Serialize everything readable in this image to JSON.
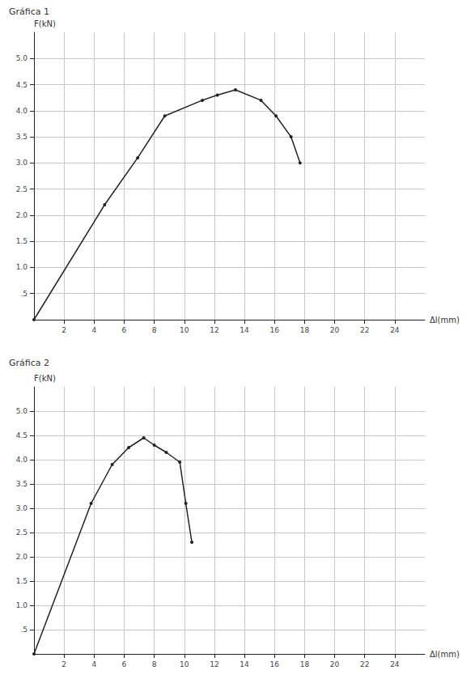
{
  "chart_data": [
    {
      "type": "line",
      "title": "Gráfica 1",
      "y_label": "F(kN)",
      "x_label": "Δl(mm)",
      "x": [
        0,
        4.7,
        6.9,
        8.7,
        11.2,
        12.2,
        13.4,
        15.1,
        16.1,
        17.1,
        17.7
      ],
      "values": [
        0,
        2.2,
        3.1,
        3.9,
        4.2,
        4.3,
        4.4,
        4.2,
        3.9,
        3.5,
        3.0
      ],
      "color": "#222222",
      "marker": "circle",
      "line_style": "solid",
      "grid": true,
      "xlim": [
        0,
        26
      ],
      "xticks": [
        2,
        4,
        6,
        8,
        10,
        12,
        14,
        16,
        18,
        20,
        22,
        24
      ],
      "ylim": [
        0,
        5.5
      ],
      "yticks": [
        {
          "value": 0.5,
          "label": ".5"
        },
        {
          "value": 1,
          "label": "1.0"
        },
        {
          "value": 1.5,
          "label": "1.5"
        },
        {
          "value": 2,
          "label": "2.0"
        },
        {
          "value": 2.5,
          "label": "2.5"
        },
        {
          "value": 3,
          "label": "3.0"
        },
        {
          "value": 3.5,
          "label": "3.5"
        },
        {
          "value": 4,
          "label": "4.0"
        },
        {
          "value": 4.5,
          "label": "4.5"
        },
        {
          "value": 5,
          "label": "5.0"
        }
      ]
    },
    {
      "type": "line",
      "title": "Gráfica 2",
      "y_label": "F(kN)",
      "x_label": "Δl(mm)",
      "x": [
        0,
        3.8,
        5.2,
        6.3,
        7.3,
        8.0,
        8.8,
        9.7,
        10.1,
        10.5
      ],
      "values": [
        0,
        3.1,
        3.9,
        4.25,
        4.45,
        4.3,
        4.15,
        3.95,
        3.1,
        2.3
      ],
      "color": "#222222",
      "marker": "circle",
      "line_style": "solid",
      "grid": true,
      "xlim": [
        0,
        26
      ],
      "xticks": [
        2,
        4,
        6,
        8,
        10,
        12,
        14,
        16,
        18,
        20,
        22,
        24
      ],
      "ylim": [
        0,
        5.5
      ],
      "yticks": [
        {
          "value": 0.5,
          "label": ".5"
        },
        {
          "value": 1,
          "label": "1.0"
        },
        {
          "value": 1.5,
          "label": "1.5"
        },
        {
          "value": 2,
          "label": "2.0"
        },
        {
          "value": 2.5,
          "label": "2.5"
        },
        {
          "value": 3,
          "label": "3.0"
        },
        {
          "value": 3.5,
          "label": "3.5"
        },
        {
          "value": 4,
          "label": "4.0"
        },
        {
          "value": 4.5,
          "label": "4.5"
        },
        {
          "value": 5,
          "label": "5.0"
        }
      ]
    }
  ]
}
